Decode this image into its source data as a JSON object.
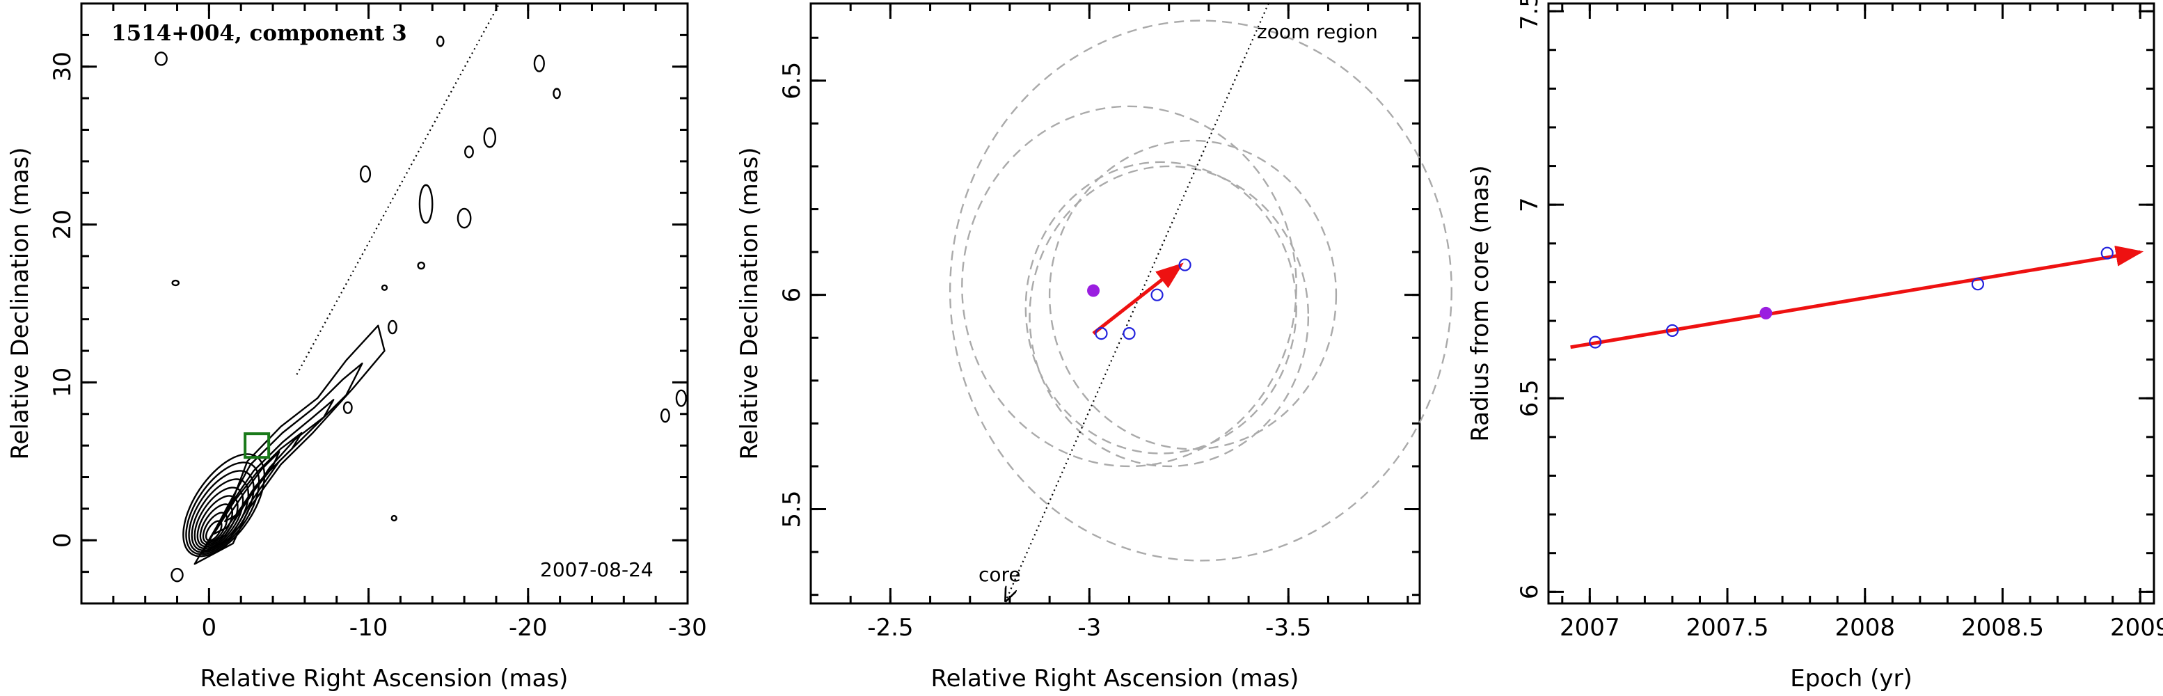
{
  "chart_data": [
    {
      "type": "contour",
      "title": "1514+004, component 3",
      "annotation": "2007-08-24",
      "xlabel": "Relative Right Ascension (mas)",
      "ylabel": "Relative Declination (mas)",
      "xlim": [
        8,
        -30
      ],
      "ylim": [
        -4,
        34
      ],
      "xticks": [
        0,
        -10,
        -20,
        -30
      ],
      "yticks": [
        0,
        10,
        20,
        30
      ],
      "marker": {
        "shape": "square",
        "color": "#1a7a1a",
        "x": -3.0,
        "y": 6.0
      },
      "jet_direction_line": {
        "from": [
          -5.5,
          10.5
        ],
        "to": [
          -18.2,
          34
        ]
      },
      "colors": {
        "marker": "#1a7a1a"
      }
    },
    {
      "type": "scatter",
      "xlabel": "Relative Right Ascension (mas)",
      "ylabel": "Relative Declination (mas)",
      "xlim": [
        -2.3,
        -3.83
      ],
      "ylim": [
        5.28,
        6.68
      ],
      "xticks": [
        -2.5,
        -3,
        -3.5
      ],
      "yticks": [
        5.5,
        6,
        6.5
      ],
      "labels": {
        "zoom": "zoom region",
        "core": "core"
      },
      "points_open": [
        {
          "x": -3.03,
          "y": 5.91
        },
        {
          "x": -3.1,
          "y": 5.91
        },
        {
          "x": -3.17,
          "y": 6.0
        },
        {
          "x": -3.24,
          "y": 6.07
        }
      ],
      "point_filled": {
        "x": -3.01,
        "y": 6.01
      },
      "velocity_vector": {
        "from": [
          -3.01,
          5.91
        ],
        "to": [
          -3.23,
          6.07
        ]
      },
      "beam_circles": [
        {
          "cx": -3.18,
          "cy": 5.97,
          "r": 0.34
        },
        {
          "cx": -3.2,
          "cy": 5.95,
          "r": 0.35
        },
        {
          "cx": -3.26,
          "cy": 6.0,
          "r": 0.36
        },
        {
          "cx": -3.1,
          "cy": 6.02,
          "r": 0.42
        },
        {
          "cx": -3.28,
          "cy": 6.01,
          "r": 0.63
        }
      ],
      "direction_line": {
        "from": [
          -3.45,
          6.68
        ],
        "to": [
          -2.79,
          5.28
        ]
      },
      "colors": {
        "open_points": "#2222dd",
        "filled_point": "#9a1ee0",
        "vector": "#ee1111",
        "circles": "#aaaaaa"
      }
    },
    {
      "type": "scatter",
      "xlabel": "Epoch (yr)",
      "ylabel": "Radius from core (mas)",
      "xlim": [
        2006.85,
        2009.05
      ],
      "ylim": [
        5.97,
        7.52
      ],
      "xticks": [
        2007,
        2007.5,
        2008,
        2008.5,
        2009
      ],
      "xtick_labels": [
        "2007",
        "2007.5",
        "2008",
        "2008.5",
        "2009"
      ],
      "yticks": [
        6,
        6.5,
        7,
        7.5
      ],
      "ytick_labels": [
        "6",
        "6.5",
        "7",
        "7.5"
      ],
      "points_open": [
        {
          "x": 2007.02,
          "y": 6.645
        },
        {
          "x": 2007.3,
          "y": 6.675
        },
        {
          "x": 2008.41,
          "y": 6.795
        },
        {
          "x": 2008.88,
          "y": 6.875
        }
      ],
      "point_filled": {
        "x": 2007.64,
        "y": 6.72
      },
      "fit_line": {
        "from": [
          2006.93,
          6.632
        ],
        "to": [
          2009.0,
          6.878
        ]
      },
      "colors": {
        "open_points": "#2222dd",
        "filled_point": "#9a1ee0",
        "fit": "#ee1111"
      }
    }
  ]
}
